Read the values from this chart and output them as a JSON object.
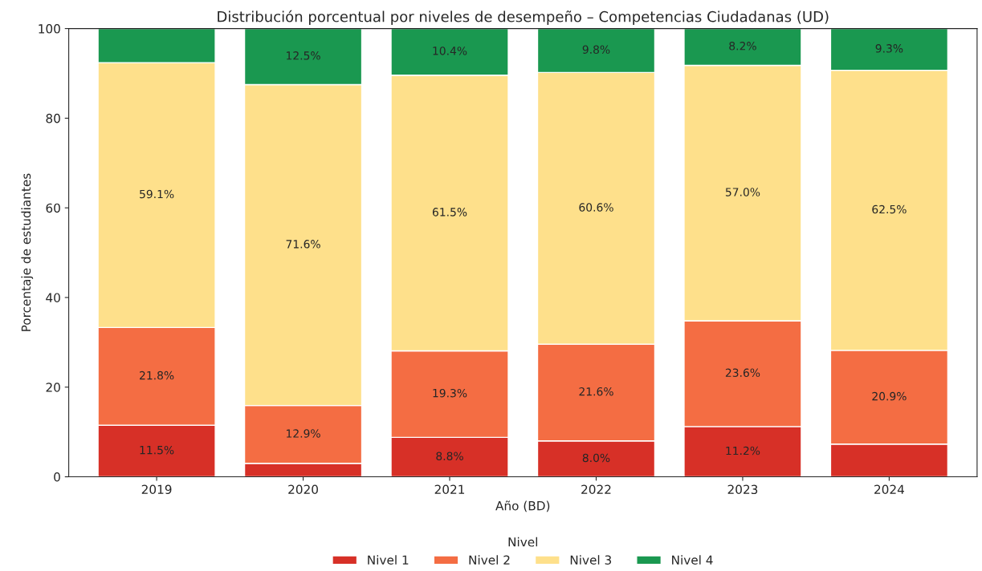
{
  "chart_data": {
    "type": "bar",
    "stacked": true,
    "title": "Distribución porcentual por niveles de desempeño – Competencias Ciudadanas (UD)",
    "xlabel": "Año (BD)",
    "ylabel": "Porcentaje de estudiantes",
    "legend_title": "Nivel",
    "legend": "bottom",
    "categories": [
      "2019",
      "2020",
      "2021",
      "2022",
      "2023",
      "2024"
    ],
    "ylim": [
      0,
      100
    ],
    "yticks": [
      0,
      20,
      40,
      60,
      80,
      100
    ],
    "grid": false,
    "series": [
      {
        "name": "Nivel 1",
        "color": "#d73027",
        "values": [
          11.5,
          3.0,
          8.8,
          8.0,
          11.2,
          7.3
        ],
        "value_labels": [
          "11.5%",
          null,
          "8.8%",
          "8.0%",
          "11.2%",
          null
        ]
      },
      {
        "name": "Nivel 2",
        "color": "#f46d43",
        "values": [
          21.8,
          12.9,
          19.3,
          21.6,
          23.6,
          20.9
        ],
        "value_labels": [
          "21.8%",
          "12.9%",
          "19.3%",
          "21.6%",
          "23.6%",
          "20.9%"
        ]
      },
      {
        "name": "Nivel 3",
        "color": "#fee08b",
        "values": [
          59.1,
          71.6,
          61.5,
          60.6,
          57.0,
          62.5
        ],
        "value_labels": [
          "59.1%",
          "71.6%",
          "61.5%",
          "60.6%",
          "57.0%",
          "62.5%"
        ]
      },
      {
        "name": "Nivel 4",
        "color": "#1a9850",
        "values": [
          7.6,
          12.5,
          10.4,
          9.8,
          8.2,
          9.3
        ],
        "value_labels": [
          null,
          "12.5%",
          "10.4%",
          "9.8%",
          "8.2%",
          "9.3%"
        ]
      }
    ]
  }
}
